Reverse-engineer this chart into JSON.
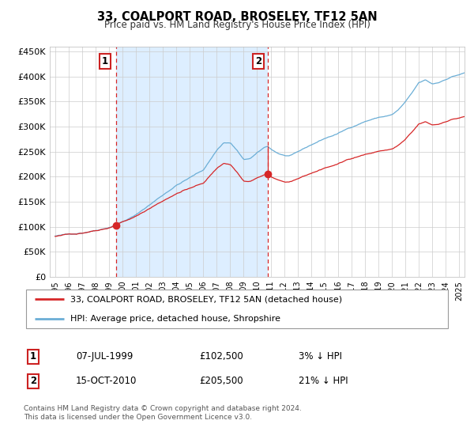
{
  "title": "33, COALPORT ROAD, BROSELEY, TF12 5AN",
  "subtitle": "Price paid vs. HM Land Registry's House Price Index (HPI)",
  "hpi_color": "#6baed6",
  "price_color": "#d62728",
  "bg_color": "#ddeeff",
  "shade_color": "#ddeeff",
  "sale1_date": 1999.52,
  "sale1_price": 102500,
  "sale2_date": 2010.79,
  "sale2_price": 205500,
  "ylim": [
    0,
    460000
  ],
  "xlim": [
    1994.6,
    2025.4
  ],
  "yticks": [
    0,
    50000,
    100000,
    150000,
    200000,
    250000,
    300000,
    350000,
    400000,
    450000
  ],
  "ytick_labels": [
    "£0",
    "£50K",
    "£100K",
    "£150K",
    "£200K",
    "£250K",
    "£300K",
    "£350K",
    "£400K",
    "£450K"
  ],
  "xticks": [
    1995,
    1996,
    1997,
    1998,
    1999,
    2000,
    2001,
    2002,
    2003,
    2004,
    2005,
    2006,
    2007,
    2008,
    2009,
    2010,
    2011,
    2012,
    2013,
    2014,
    2015,
    2016,
    2017,
    2018,
    2019,
    2020,
    2021,
    2022,
    2023,
    2024,
    2025
  ],
  "legend_line1": "33, COALPORT ROAD, BROSELEY, TF12 5AN (detached house)",
  "legend_line2": "HPI: Average price, detached house, Shropshire",
  "note1_label": "1",
  "note1_date": "07-JUL-1999",
  "note1_price": "£102,500",
  "note1_pct": "3% ↓ HPI",
  "note2_label": "2",
  "note2_date": "15-OCT-2010",
  "note2_price": "£205,500",
  "note2_pct": "21% ↓ HPI",
  "footer": "Contains HM Land Registry data © Crown copyright and database right 2024.\nThis data is licensed under the Open Government Licence v3.0."
}
